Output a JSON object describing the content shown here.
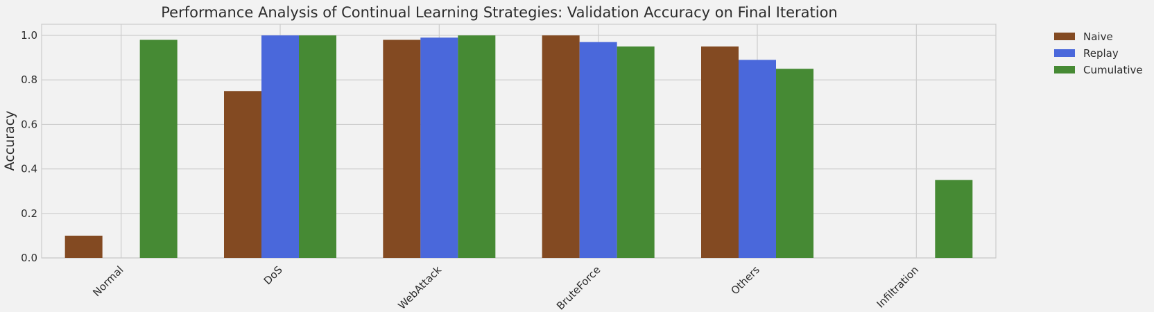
{
  "chart_data": {
    "type": "bar",
    "title": "Performance Analysis of Continual Learning Strategies: Validation Accuracy on Final Iteration",
    "xlabel": "",
    "ylabel": "Accuracy",
    "ylim": [
      0,
      1.05
    ],
    "yticks": [
      0.0,
      0.2,
      0.4,
      0.6,
      0.8,
      1.0
    ],
    "ytick_labels": [
      "0.0",
      "0.2",
      "0.4",
      "0.6",
      "0.8",
      "1.0"
    ],
    "grid": true,
    "legend_position": "outside-top-right",
    "categories": [
      "Normal",
      "DoS",
      "WebAttack",
      "BruteForce",
      "Others",
      "Infiltration"
    ],
    "series": [
      {
        "name": "Naive",
        "color": "#834a22",
        "values": [
          0.1,
          0.75,
          0.98,
          1.0,
          0.95,
          0.0
        ]
      },
      {
        "name": "Replay",
        "color": "#4a68db",
        "values": [
          0.0,
          1.0,
          0.99,
          0.97,
          0.89,
          0.0
        ]
      },
      {
        "name": "Cumulative",
        "color": "#468a34",
        "values": [
          0.98,
          1.0,
          1.0,
          0.95,
          0.85,
          0.35
        ]
      }
    ]
  }
}
